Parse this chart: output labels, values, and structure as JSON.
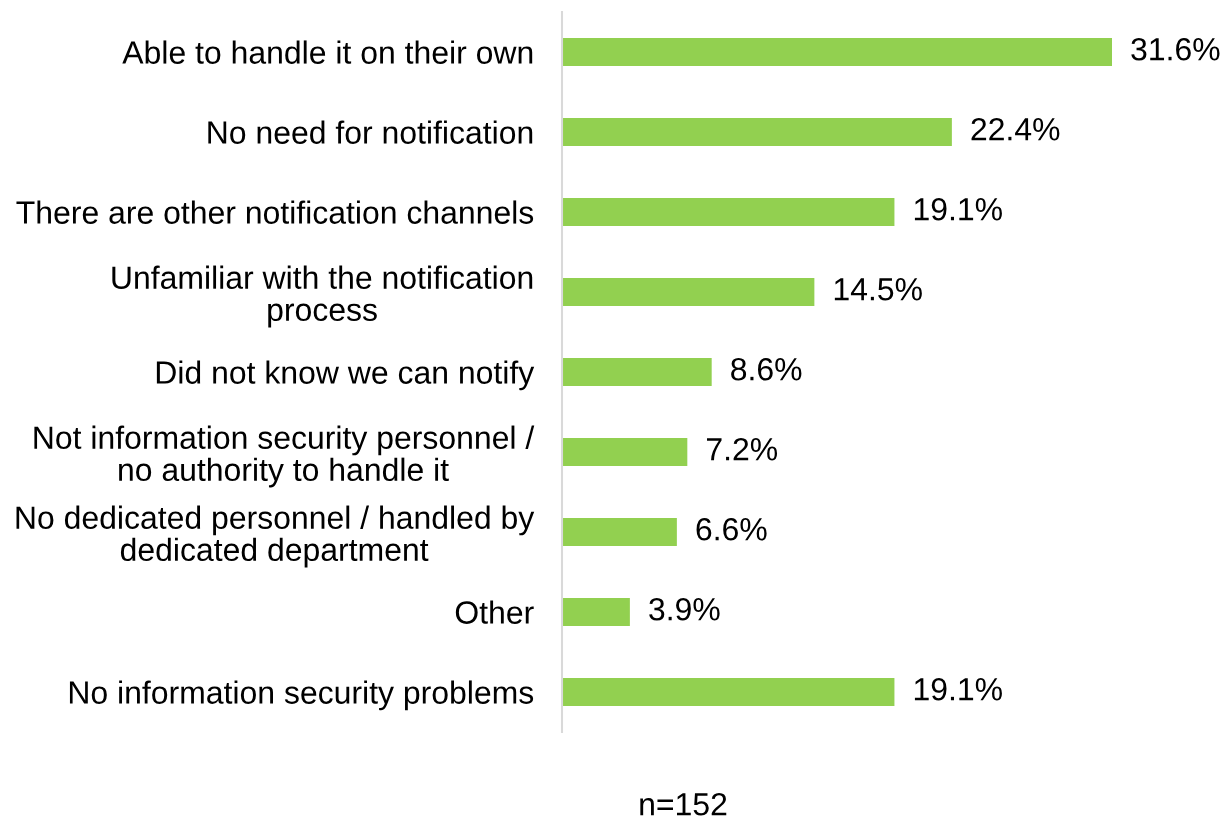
{
  "chart_data": {
    "type": "bar",
    "orientation": "horizontal",
    "categories": [
      "Able to handle it on their own",
      "No need for notification",
      "There are other notification channels",
      "Unfamiliar with the notification\nprocess",
      "Did not know we can notify",
      "Not information security personnel /\nno authority to handle it",
      "No dedicated personnel / handled by\ndedicated department",
      "Other",
      "No information security problems"
    ],
    "values": [
      31.6,
      22.4,
      19.1,
      14.5,
      8.6,
      7.2,
      6.6,
      3.9,
      19.1
    ],
    "value_labels": [
      "31.6%",
      "22.4%",
      "19.1%",
      "14.5%",
      "8.6%",
      "7.2%",
      "6.6%",
      "3.9%",
      "19.1%"
    ],
    "color": "#92d050",
    "tick_labels": "y",
    "annotations": [
      "n=152"
    ]
  }
}
